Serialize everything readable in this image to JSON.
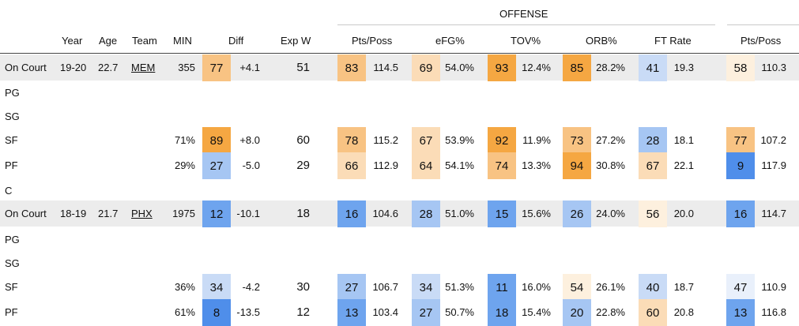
{
  "header": {
    "group_label": "OFFENSE",
    "columns": {
      "year": "Year",
      "age": "Age",
      "team": "Team",
      "min": "MIN",
      "diff": "Diff",
      "expw": "Exp W",
      "pts_poss": "Pts/Poss",
      "efg": "eFG%",
      "tov": "TOV%",
      "orb": "ORB%",
      "ftr": "FT Rate",
      "pts_poss2": "Pts/Poss"
    }
  },
  "colors": {
    "very_high": "#f5a742",
    "high": "#f8c383",
    "mid_high": "#fbdcb7",
    "neutral_warm": "#fdf0de",
    "neutral_cool": "#e9f0fb",
    "mid_low": "#c9dbf6",
    "low": "#a6c6f3",
    "very_low": "#6ea4ee",
    "lowest": "#4f8eea"
  },
  "rows": [
    {
      "label": "On Court",
      "year": "19-20",
      "age": "22.7",
      "team": "MEM",
      "min": "355",
      "diff_pct": "77",
      "diff": "+4.1",
      "expw": "51",
      "pts_pct": "83",
      "pts": "114.5",
      "efg_pct": "69",
      "efg": "54.0%",
      "tov_pct": "93",
      "tov": "12.4%",
      "orb_pct": "85",
      "orb": "28.2%",
      "ftr_pct": "41",
      "ftr": "19.3",
      "pts2_pct": "58",
      "pts2": "110.3"
    },
    {
      "label": "PG"
    },
    {
      "label": "SG"
    },
    {
      "label": "SF",
      "min": "71%",
      "diff_pct": "89",
      "diff": "+8.0",
      "expw": "60",
      "pts_pct": "78",
      "pts": "115.2",
      "efg_pct": "67",
      "efg": "53.9%",
      "tov_pct": "92",
      "tov": "11.9%",
      "orb_pct": "73",
      "orb": "27.2%",
      "ftr_pct": "28",
      "ftr": "18.1",
      "pts2_pct": "77",
      "pts2": "107.2"
    },
    {
      "label": "PF",
      "min": "29%",
      "diff_pct": "27",
      "diff": "-5.0",
      "expw": "29",
      "pts_pct": "66",
      "pts": "112.9",
      "efg_pct": "64",
      "efg": "54.1%",
      "tov_pct": "74",
      "tov": "13.3%",
      "orb_pct": "94",
      "orb": "30.8%",
      "ftr_pct": "67",
      "ftr": "22.1",
      "pts2_pct": "9",
      "pts2": "117.9"
    },
    {
      "label": "C"
    },
    {
      "label": "On Court",
      "year": "18-19",
      "age": "21.7",
      "team": "PHX",
      "min": "1975",
      "diff_pct": "12",
      "diff": "-10.1",
      "expw": "18",
      "pts_pct": "16",
      "pts": "104.6",
      "efg_pct": "28",
      "efg": "51.0%",
      "tov_pct": "15",
      "tov": "15.6%",
      "orb_pct": "26",
      "orb": "24.0%",
      "ftr_pct": "56",
      "ftr": "20.0",
      "pts2_pct": "16",
      "pts2": "114.7"
    },
    {
      "label": "PG"
    },
    {
      "label": "SG"
    },
    {
      "label": "SF",
      "min": "36%",
      "diff_pct": "34",
      "diff": "-4.2",
      "expw": "30",
      "pts_pct": "27",
      "pts": "106.7",
      "efg_pct": "34",
      "efg": "51.3%",
      "tov_pct": "11",
      "tov": "16.0%",
      "orb_pct": "54",
      "orb": "26.1%",
      "ftr_pct": "40",
      "ftr": "18.7",
      "pts2_pct": "47",
      "pts2": "110.9"
    },
    {
      "label": "PF",
      "min": "61%",
      "diff_pct": "8",
      "diff": "-13.5",
      "expw": "12",
      "pts_pct": "13",
      "pts": "103.4",
      "efg_pct": "27",
      "efg": "50.7%",
      "tov_pct": "18",
      "tov": "15.4%",
      "orb_pct": "20",
      "orb": "22.8%",
      "ftr_pct": "60",
      "ftr": "20.8",
      "pts2_pct": "13",
      "pts2": "116.8"
    }
  ]
}
